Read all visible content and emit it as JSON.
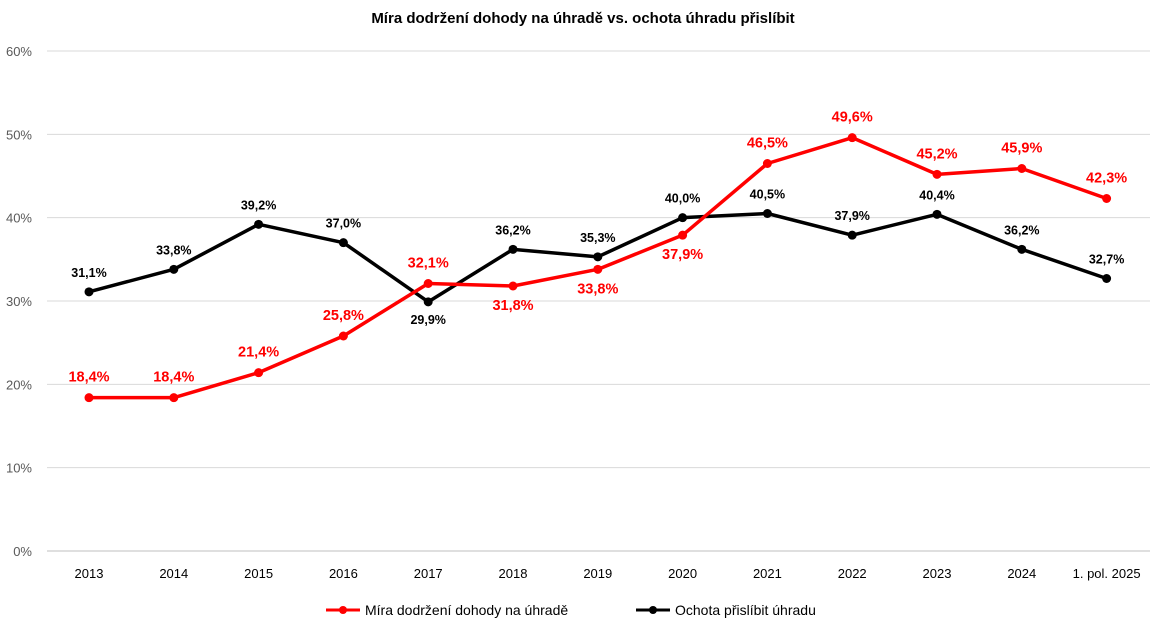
{
  "chart_data": {
    "type": "line",
    "title": "Míra dodržení dohody na úhradě vs. ochota úhradu přislíbit",
    "categories": [
      "2013",
      "2014",
      "2015",
      "2016",
      "2017",
      "2018",
      "2019",
      "2020",
      "2021",
      "2022",
      "2023",
      "2024",
      "1. pol. 2025"
    ],
    "ylim": [
      0,
      60
    ],
    "yticks": [
      "0%",
      "10%",
      "20%",
      "30%",
      "40%",
      "50%",
      "60%"
    ],
    "ytick_values": [
      0,
      10,
      20,
      30,
      40,
      50,
      60
    ],
    "grid": true,
    "legend_position": "bottom",
    "series": [
      {
        "name": "Míra dodržení dohody na úhradě",
        "color": "#ff0000",
        "values": [
          18.4,
          18.4,
          21.4,
          25.8,
          32.1,
          31.8,
          33.8,
          37.9,
          46.5,
          49.6,
          45.2,
          45.9,
          42.3
        ],
        "labels": [
          "18,4%",
          "18,4%",
          "21,4%",
          "25,8%",
          "32,1%",
          "31,8%",
          "33,8%",
          "37,9%",
          "46,5%",
          "49,6%",
          "45,2%",
          "45,9%",
          "42,3%"
        ]
      },
      {
        "name": "Ochota přislíbit úhradu",
        "color": "#000000",
        "values": [
          31.1,
          33.8,
          39.2,
          37.0,
          29.9,
          36.2,
          35.3,
          40.0,
          40.5,
          37.9,
          40.4,
          36.2,
          32.7
        ],
        "labels": [
          "31,1%",
          "33,8%",
          "39,2%",
          "37,0%",
          "29,9%",
          "36,2%",
          "35,3%",
          "40,0%",
          "40,5%",
          "37,9%",
          "40,4%",
          "36,2%",
          "32,7%"
        ]
      }
    ]
  }
}
